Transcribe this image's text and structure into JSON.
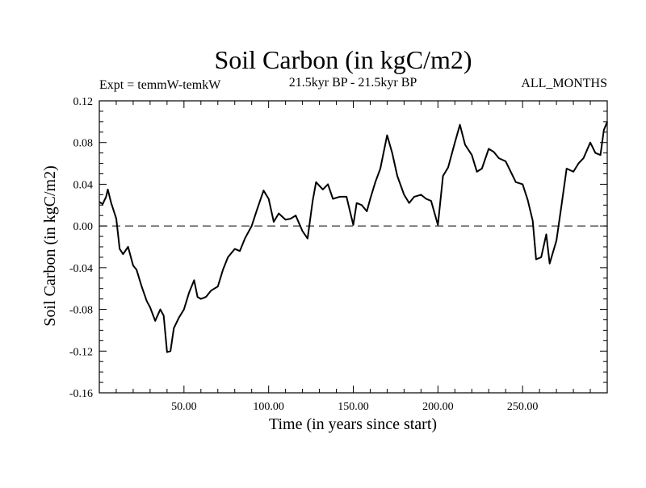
{
  "chart_data": {
    "type": "line",
    "title": "Soil Carbon (in kgC/m2)",
    "subtitle_left": "Expt = temmW-temkW",
    "subtitle_center": "21.5kyr BP - 21.5kyr BP",
    "subtitle_right": "ALL_MONTHS",
    "xlabel": "Time (in years since start)",
    "ylabel": "Soil Carbon (in kgC/m2)",
    "xlim": [
      0,
      300
    ],
    "ylim": [
      -0.16,
      0.12
    ],
    "xticks": [
      50,
      100,
      150,
      200,
      250
    ],
    "xtick_labels": [
      "50.00",
      "100.00",
      "150.00",
      "200.00",
      "250.00"
    ],
    "yticks": [
      0.12,
      0.08,
      0.04,
      0.0,
      -0.04,
      -0.08,
      -0.12,
      -0.16
    ],
    "ytick_labels": [
      "0.12",
      "0.08",
      "0.04",
      "0.00",
      "-0.04",
      "-0.08",
      "-0.12",
      "-0.16"
    ],
    "reference_line": {
      "y": 0.0,
      "style": "dashed"
    },
    "series": [
      {
        "name": "temmW-temkW",
        "x": [
          0,
          2,
          4,
          5,
          7,
          10,
          12,
          14,
          17,
          20,
          22,
          25,
          28,
          30,
          33,
          36,
          38,
          40,
          42,
          44,
          47,
          50,
          53,
          56,
          58,
          60,
          63,
          66,
          70,
          73,
          76,
          80,
          83,
          86,
          90,
          93,
          97,
          100,
          103,
          106,
          110,
          113,
          116,
          120,
          123,
          126,
          128,
          132,
          135,
          138,
          142,
          146,
          150,
          152,
          155,
          158,
          160,
          163,
          166,
          170,
          173,
          176,
          180,
          183,
          186,
          190,
          193,
          196,
          200,
          203,
          206,
          210,
          213,
          216,
          220,
          223,
          226,
          230,
          233,
          236,
          240,
          243,
          246,
          250,
          253,
          256,
          258,
          261,
          264,
          266,
          270,
          273,
          276,
          280,
          283,
          286,
          290,
          293,
          296,
          298,
          300
        ],
        "y": [
          0.023,
          0.021,
          0.028,
          0.035,
          0.022,
          0.007,
          -0.022,
          -0.027,
          -0.02,
          -0.038,
          -0.042,
          -0.058,
          -0.072,
          -0.078,
          -0.091,
          -0.08,
          -0.086,
          -0.121,
          -0.12,
          -0.098,
          -0.088,
          -0.08,
          -0.064,
          -0.052,
          -0.068,
          -0.07,
          -0.068,
          -0.062,
          -0.058,
          -0.042,
          -0.03,
          -0.022,
          -0.024,
          -0.012,
          0.0,
          0.015,
          0.034,
          0.026,
          0.004,
          0.012,
          0.006,
          0.007,
          0.01,
          -0.005,
          -0.012,
          0.024,
          0.042,
          0.035,
          0.04,
          0.026,
          0.028,
          0.028,
          0.001,
          0.022,
          0.02,
          0.014,
          0.026,
          0.042,
          0.055,
          0.087,
          0.07,
          0.048,
          0.03,
          0.022,
          0.028,
          0.03,
          0.026,
          0.024,
          0.001,
          0.048,
          0.056,
          0.08,
          0.097,
          0.078,
          0.068,
          0.052,
          0.055,
          0.074,
          0.071,
          0.065,
          0.062,
          0.052,
          0.042,
          0.04,
          0.025,
          0.005,
          -0.032,
          -0.03,
          -0.008,
          -0.036,
          -0.014,
          0.02,
          0.055,
          0.052,
          0.06,
          0.065,
          0.08,
          0.07,
          0.068,
          0.092,
          0.1
        ]
      }
    ]
  }
}
